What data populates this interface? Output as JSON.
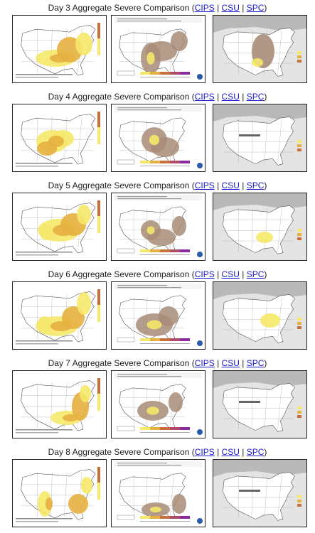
{
  "sections": [
    {
      "title": "Day 3 Aggregate Severe Comparison (",
      "links": [
        "CIPS",
        "CSU",
        "SPC"
      ],
      "close": ")"
    },
    {
      "title": "Day 4 Aggregate Severe Comparison (",
      "links": [
        "CIPS",
        "CSU",
        "SPC"
      ],
      "close": ")"
    },
    {
      "title": "Day 5 Aggregate Severe Comparison (",
      "links": [
        "CIPS",
        "CSU",
        "SPC"
      ],
      "close": ")"
    },
    {
      "title": "Day 6 Aggregate Severe Comparison (",
      "links": [
        "CIPS",
        "CSU",
        "SPC"
      ],
      "close": ")"
    },
    {
      "title": "Day 7 Aggregate Severe Comparison (",
      "links": [
        "CIPS",
        "CSU",
        "SPC"
      ],
      "close": ")"
    },
    {
      "title": "Day 8 Aggregate Severe Comparison (",
      "links": [
        "CIPS",
        "CSU",
        "SPC"
      ],
      "close": ")"
    }
  ],
  "separator": "|",
  "colors": {
    "link": "#1a1ad0",
    "risk_low": "#f5e86a",
    "risk_mid": "#e6b040",
    "risk_high": "#c8703a",
    "csu_area": "#a88c78",
    "spc_outline": "#b39880"
  }
}
